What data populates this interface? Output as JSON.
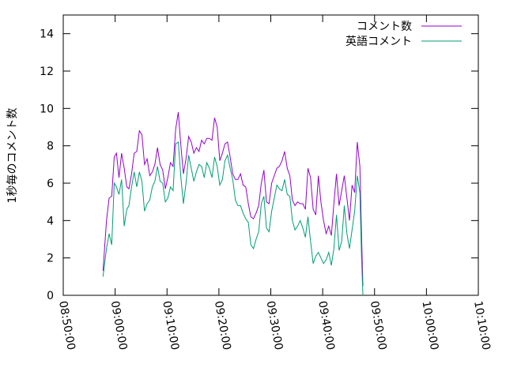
{
  "chart_data": {
    "type": "line",
    "title": "",
    "xlabel": "",
    "ylabel": "1秒毎のコメント数",
    "xlim": [
      "08:50:00",
      "10:10:00"
    ],
    "ylim": [
      0,
      15
    ],
    "x_ticks": [
      "08:50:00",
      "09:00:00",
      "09:10:00",
      "09:20:00",
      "09:30:00",
      "09:40:00",
      "09:50:00",
      "10:00:00",
      "10:10:00"
    ],
    "y_ticks": [
      0,
      2,
      4,
      6,
      8,
      10,
      12,
      14
    ],
    "grid": false,
    "legend_position": "top-right",
    "series": [
      {
        "name": "コメント数",
        "color": "#9400d3",
        "points": [
          [
            "08:57:40",
            1.3
          ],
          [
            "08:58:20",
            4.0
          ],
          [
            "08:58:50",
            5.2
          ],
          [
            "08:59:20",
            5.3
          ],
          [
            "08:59:50",
            7.4
          ],
          [
            "09:00:15",
            7.6
          ],
          [
            "09:00:45",
            6.3
          ],
          [
            "09:01:15",
            7.6
          ],
          [
            "09:01:45",
            6.8
          ],
          [
            "09:02:15",
            5.8
          ],
          [
            "09:02:40",
            5.7
          ],
          [
            "09:03:10",
            6.5
          ],
          [
            "09:03:40",
            7.6
          ],
          [
            "09:04:10",
            7.7
          ],
          [
            "09:04:40",
            8.8
          ],
          [
            "09:05:10",
            8.6
          ],
          [
            "09:05:40",
            7.0
          ],
          [
            "09:06:10",
            7.3
          ],
          [
            "09:06:40",
            6.4
          ],
          [
            "09:07:10",
            6.6
          ],
          [
            "09:07:40",
            7.0
          ],
          [
            "09:08:10",
            7.9
          ],
          [
            "09:08:40",
            7.0
          ],
          [
            "09:09:10",
            6.7
          ],
          [
            "09:09:40",
            5.7
          ],
          [
            "09:10:10",
            6.3
          ],
          [
            "09:10:40",
            7.1
          ],
          [
            "09:11:10",
            6.9
          ],
          [
            "09:11:40",
            8.9
          ],
          [
            "09:12:10",
            9.8
          ],
          [
            "09:12:40",
            8.0
          ],
          [
            "09:13:10",
            6.5
          ],
          [
            "09:13:40",
            7.3
          ],
          [
            "09:14:10",
            8.5
          ],
          [
            "09:14:40",
            8.2
          ],
          [
            "09:15:10",
            7.6
          ],
          [
            "09:15:40",
            7.9
          ],
          [
            "09:16:10",
            7.7
          ],
          [
            "09:16:40",
            8.3
          ],
          [
            "09:17:10",
            8.1
          ],
          [
            "09:17:40",
            8.4
          ],
          [
            "09:18:10",
            8.4
          ],
          [
            "09:18:40",
            8.3
          ],
          [
            "09:19:10",
            9.5
          ],
          [
            "09:19:40",
            9.0
          ],
          [
            "09:20:10",
            7.2
          ],
          [
            "09:20:40",
            7.6
          ],
          [
            "09:21:10",
            8.1
          ],
          [
            "09:21:40",
            8.2
          ],
          [
            "09:22:10",
            7.4
          ],
          [
            "09:22:40",
            6.5
          ],
          [
            "09:23:10",
            6.2
          ],
          [
            "09:23:40",
            6.2
          ],
          [
            "09:24:10",
            6.5
          ],
          [
            "09:24:40",
            5.9
          ],
          [
            "09:25:10",
            5.8
          ],
          [
            "09:25:40",
            4.9
          ],
          [
            "09:26:10",
            4.2
          ],
          [
            "09:26:40",
            4.1
          ],
          [
            "09:27:10",
            4.4
          ],
          [
            "09:27:40",
            4.8
          ],
          [
            "09:28:10",
            6.0
          ],
          [
            "09:28:40",
            6.7
          ],
          [
            "09:29:10",
            5.0
          ],
          [
            "09:29:40",
            4.9
          ],
          [
            "09:30:10",
            6.0
          ],
          [
            "09:30:40",
            6.4
          ],
          [
            "09:31:10",
            6.8
          ],
          [
            "09:31:40",
            6.9
          ],
          [
            "09:32:10",
            7.2
          ],
          [
            "09:32:40",
            7.7
          ],
          [
            "09:33:10",
            6.8
          ],
          [
            "09:33:40",
            6.4
          ],
          [
            "09:34:10",
            5.1
          ],
          [
            "09:34:40",
            4.8
          ],
          [
            "09:35:10",
            5.0
          ],
          [
            "09:35:40",
            4.9
          ],
          [
            "09:36:10",
            4.9
          ],
          [
            "09:36:40",
            4.6
          ],
          [
            "09:37:10",
            6.8
          ],
          [
            "09:37:40",
            6.3
          ],
          [
            "09:38:10",
            4.6
          ],
          [
            "09:38:40",
            4.3
          ],
          [
            "09:39:10",
            6.4
          ],
          [
            "09:39:40",
            5.0
          ],
          [
            "09:40:10",
            4.0
          ],
          [
            "09:40:40",
            3.3
          ],
          [
            "09:41:10",
            3.7
          ],
          [
            "09:41:40",
            3.2
          ],
          [
            "09:42:10",
            4.9
          ],
          [
            "09:42:40",
            6.5
          ],
          [
            "09:43:10",
            4.8
          ],
          [
            "09:43:40",
            5.6
          ],
          [
            "09:44:10",
            6.4
          ],
          [
            "09:44:40",
            5.2
          ],
          [
            "09:45:10",
            4.0
          ],
          [
            "09:45:40",
            5.9
          ],
          [
            "09:46:10",
            5.5
          ],
          [
            "09:46:40",
            8.2
          ],
          [
            "09:47:10",
            6.9
          ],
          [
            "09:47:30",
            3.2
          ],
          [
            "09:47:45",
            0.5
          ]
        ]
      },
      {
        "name": "英語コメント",
        "color": "#009e73",
        "points": [
          [
            "08:57:40",
            1.0
          ],
          [
            "08:58:20",
            2.5
          ],
          [
            "08:58:50",
            3.3
          ],
          [
            "08:59:20",
            2.7
          ],
          [
            "08:59:50",
            6.0
          ],
          [
            "09:00:15",
            5.8
          ],
          [
            "09:00:45",
            5.4
          ],
          [
            "09:01:15",
            6.2
          ],
          [
            "09:01:45",
            3.7
          ],
          [
            "09:02:15",
            4.6
          ],
          [
            "09:02:40",
            4.8
          ],
          [
            "09:03:10",
            5.8
          ],
          [
            "09:03:40",
            6.6
          ],
          [
            "09:04:10",
            5.8
          ],
          [
            "09:04:40",
            6.6
          ],
          [
            "09:05:10",
            6.1
          ],
          [
            "09:05:40",
            4.5
          ],
          [
            "09:06:10",
            4.9
          ],
          [
            "09:06:40",
            5.1
          ],
          [
            "09:07:10",
            5.8
          ],
          [
            "09:07:40",
            6.1
          ],
          [
            "09:08:10",
            6.9
          ],
          [
            "09:08:40",
            6.1
          ],
          [
            "09:09:10",
            6.0
          ],
          [
            "09:09:40",
            5.0
          ],
          [
            "09:10:10",
            5.2
          ],
          [
            "09:10:40",
            5.8
          ],
          [
            "09:11:10",
            5.6
          ],
          [
            "09:11:40",
            8.1
          ],
          [
            "09:12:10",
            8.2
          ],
          [
            "09:12:40",
            6.3
          ],
          [
            "09:13:10",
            4.9
          ],
          [
            "09:13:40",
            6.0
          ],
          [
            "09:14:10",
            7.5
          ],
          [
            "09:14:40",
            6.8
          ],
          [
            "09:15:10",
            6.1
          ],
          [
            "09:15:40",
            6.6
          ],
          [
            "09:16:10",
            7.0
          ],
          [
            "09:16:40",
            6.9
          ],
          [
            "09:17:10",
            6.3
          ],
          [
            "09:17:40",
            7.1
          ],
          [
            "09:18:10",
            6.8
          ],
          [
            "09:18:40",
            6.3
          ],
          [
            "09:19:10",
            7.4
          ],
          [
            "09:19:40",
            6.9
          ],
          [
            "09:20:10",
            5.9
          ],
          [
            "09:20:40",
            6.2
          ],
          [
            "09:21:10",
            7.2
          ],
          [
            "09:21:40",
            7.5
          ],
          [
            "09:22:10",
            6.8
          ],
          [
            "09:22:40",
            6.2
          ],
          [
            "09:23:10",
            5.1
          ],
          [
            "09:23:40",
            4.8
          ],
          [
            "09:24:10",
            4.8
          ],
          [
            "09:24:40",
            4.4
          ],
          [
            "09:25:10",
            4.1
          ],
          [
            "09:25:40",
            3.9
          ],
          [
            "09:26:10",
            2.7
          ],
          [
            "09:26:40",
            2.5
          ],
          [
            "09:27:10",
            3.0
          ],
          [
            "09:27:40",
            3.4
          ],
          [
            "09:28:10",
            4.9
          ],
          [
            "09:28:40",
            5.3
          ],
          [
            "09:29:10",
            3.6
          ],
          [
            "09:29:40",
            3.4
          ],
          [
            "09:30:10",
            4.5
          ],
          [
            "09:30:40",
            5.2
          ],
          [
            "09:31:10",
            5.9
          ],
          [
            "09:31:40",
            5.7
          ],
          [
            "09:32:10",
            5.6
          ],
          [
            "09:32:40",
            6.2
          ],
          [
            "09:33:10",
            5.4
          ],
          [
            "09:33:40",
            5.3
          ],
          [
            "09:34:10",
            4.0
          ],
          [
            "09:34:40",
            3.5
          ],
          [
            "09:35:10",
            3.7
          ],
          [
            "09:35:40",
            4.0
          ],
          [
            "09:36:10",
            3.6
          ],
          [
            "09:36:40",
            3.1
          ],
          [
            "09:37:10",
            4.2
          ],
          [
            "09:37:40",
            2.9
          ],
          [
            "09:38:10",
            1.7
          ],
          [
            "09:38:40",
            2.1
          ],
          [
            "09:39:10",
            2.3
          ],
          [
            "09:39:40",
            2.0
          ],
          [
            "09:40:10",
            1.7
          ],
          [
            "09:40:40",
            1.9
          ],
          [
            "09:41:10",
            2.3
          ],
          [
            "09:41:40",
            1.6
          ],
          [
            "09:42:10",
            2.5
          ],
          [
            "09:42:40",
            4.3
          ],
          [
            "09:43:10",
            2.4
          ],
          [
            "09:43:40",
            2.9
          ],
          [
            "09:44:10",
            4.8
          ],
          [
            "09:44:40",
            3.3
          ],
          [
            "09:45:10",
            2.5
          ],
          [
            "09:45:40",
            3.5
          ],
          [
            "09:46:10",
            4.5
          ],
          [
            "09:46:40",
            6.4
          ],
          [
            "09:47:10",
            5.5
          ],
          [
            "09:47:30",
            2.0
          ],
          [
            "09:47:45",
            0.0
          ]
        ]
      }
    ]
  }
}
